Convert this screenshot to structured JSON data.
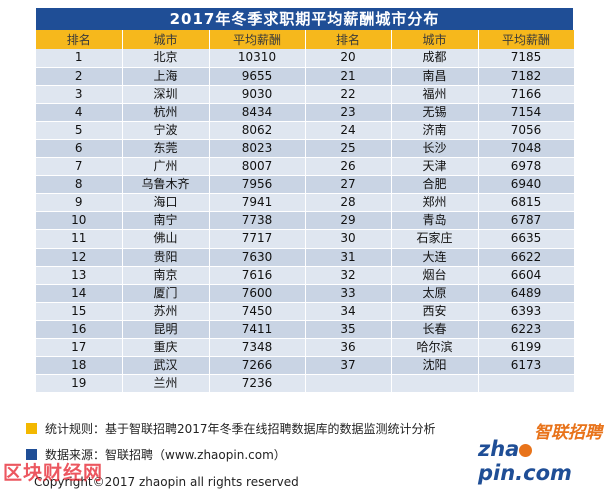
{
  "title": "2017年冬季求职期平均薪酬城市分布",
  "headers": [
    "排名",
    "城市",
    "平均薪酬",
    "排名",
    "城市",
    "平均薪酬"
  ],
  "rows": [
    [
      "1",
      "北京",
      "10310",
      "20",
      "成都",
      "7185"
    ],
    [
      "2",
      "上海",
      "9655",
      "21",
      "南昌",
      "7182"
    ],
    [
      "3",
      "深圳",
      "9030",
      "22",
      "福州",
      "7166"
    ],
    [
      "4",
      "杭州",
      "8434",
      "23",
      "无锡",
      "7154"
    ],
    [
      "5",
      "宁波",
      "8062",
      "24",
      "济南",
      "7056"
    ],
    [
      "6",
      "东莞",
      "8023",
      "25",
      "长沙",
      "7048"
    ],
    [
      "7",
      "广州",
      "8007",
      "26",
      "天津",
      "6978"
    ],
    [
      "8",
      "乌鲁木齐",
      "7956",
      "27",
      "合肥",
      "6940"
    ],
    [
      "9",
      "海口",
      "7941",
      "28",
      "郑州",
      "6815"
    ],
    [
      "10",
      "南宁",
      "7738",
      "29",
      "青岛",
      "6787"
    ],
    [
      "11",
      "佛山",
      "7717",
      "30",
      "石家庄",
      "6635"
    ],
    [
      "12",
      "贵阳",
      "7630",
      "31",
      "大连",
      "6622"
    ],
    [
      "13",
      "南京",
      "7616",
      "32",
      "烟台",
      "6604"
    ],
    [
      "14",
      "厦门",
      "7600",
      "33",
      "太原",
      "6489"
    ],
    [
      "15",
      "苏州",
      "7450",
      "34",
      "西安",
      "6393"
    ],
    [
      "16",
      "昆明",
      "7411",
      "35",
      "长春",
      "6223"
    ],
    [
      "17",
      "重庆",
      "7348",
      "36",
      "哈尔滨",
      "6199"
    ],
    [
      "18",
      "武汉",
      "7266",
      "37",
      "沈阳",
      "6173"
    ],
    [
      "19",
      "兰州",
      "7236",
      "",
      "",
      ""
    ]
  ],
  "footer": {
    "rule": "统计规则：基于智联招聘2017年冬季在线招聘数据库的数据监测统计分析",
    "source": "数据来源：智联招聘（www.zhaopin.com）",
    "copyright": "Copyright©2017 zhaopin all rights reserved"
  },
  "watermark": "区块财经网",
  "logo": {
    "cn": "智联招聘",
    "en_left": "zha",
    "en_right": "pin.com"
  },
  "colors": {
    "title_bg": "#1f4e96",
    "header_bg": "#f6b81c",
    "row_light": "#dfe6f0",
    "row_dark": "#c9d4e4"
  }
}
